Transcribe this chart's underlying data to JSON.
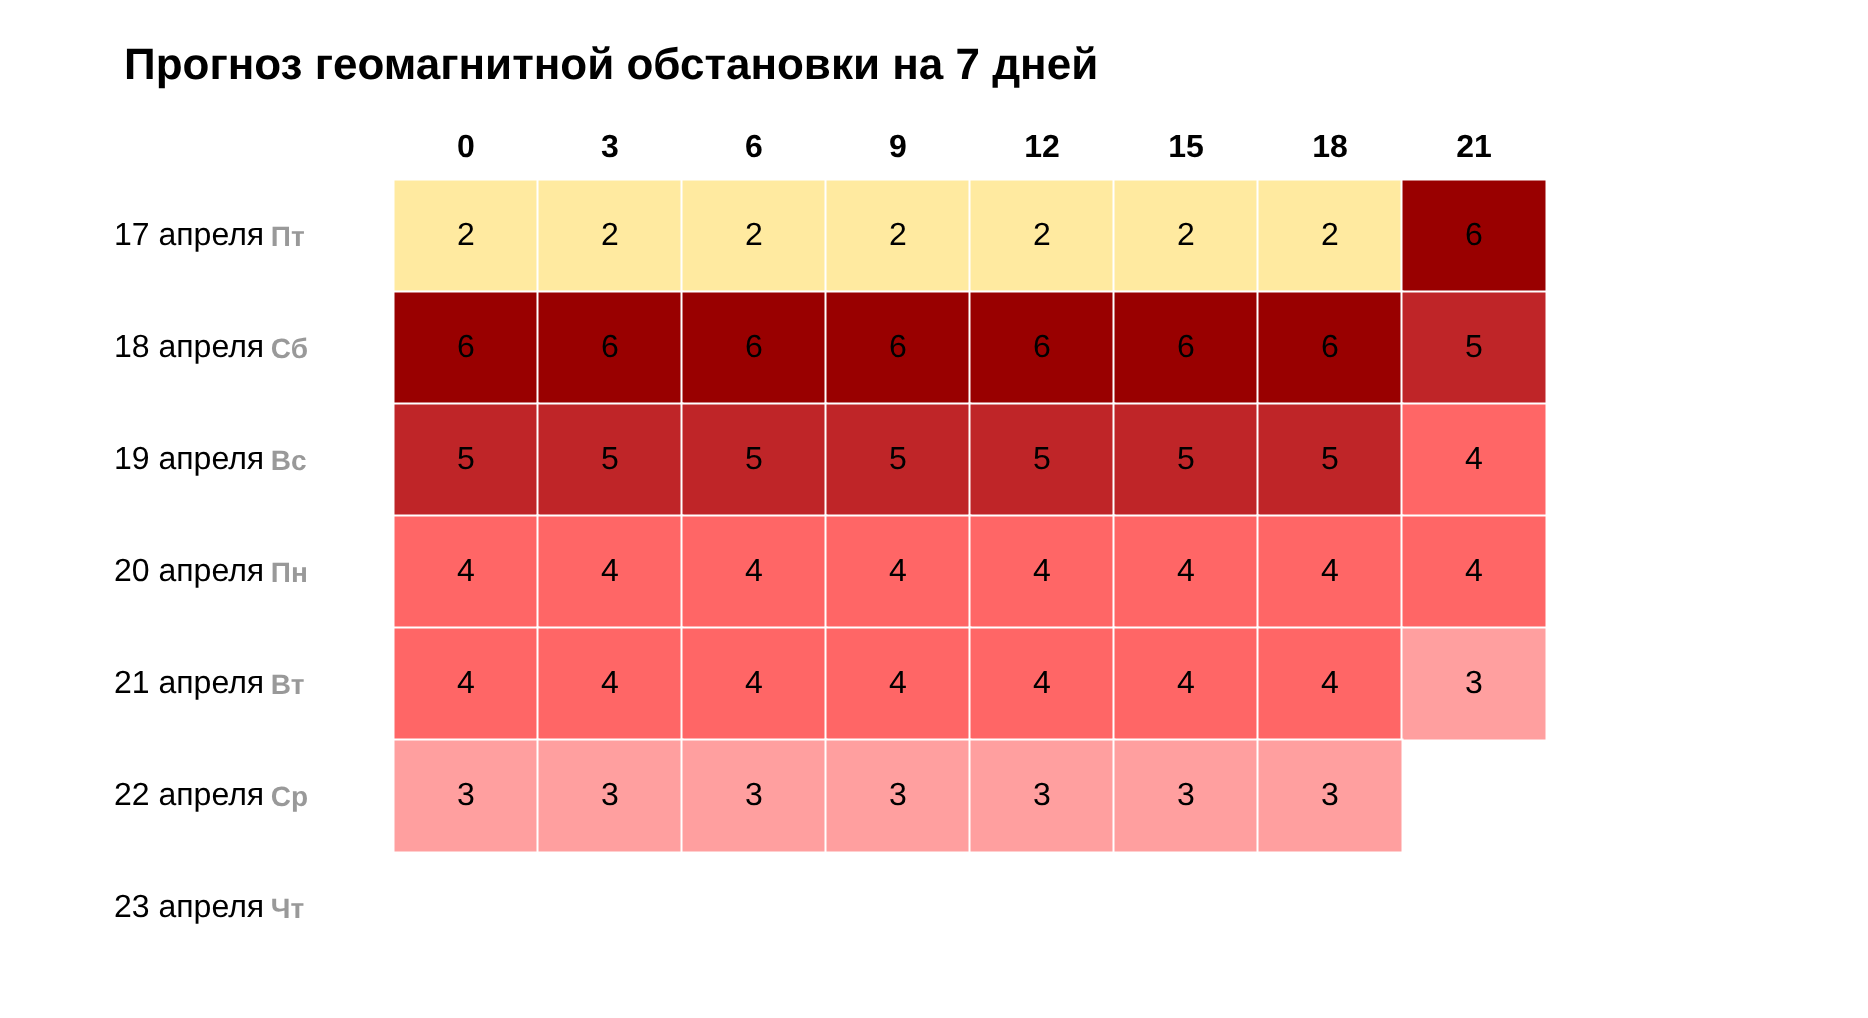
{
  "chart_data": {
    "type": "heatmap",
    "title": "Прогноз геомагнитной обстановки на 7 дней",
    "categories": [
      "0",
      "3",
      "6",
      "9",
      "12",
      "15",
      "18",
      "21"
    ],
    "y_categories": [
      "17 апреля Пт",
      "18 апреля Сб",
      "19 апреля Вс",
      "20 апреля Пн",
      "21 апреля Вт",
      "22 апреля Ср",
      "23 апреля Чт"
    ],
    "cells": [
      [
        2,
        2,
        2,
        2,
        2,
        2,
        2,
        6
      ],
      [
        6,
        6,
        6,
        6,
        6,
        6,
        6,
        5
      ],
      [
        5,
        5,
        5,
        5,
        5,
        5,
        5,
        4
      ],
      [
        4,
        4,
        4,
        4,
        4,
        4,
        4,
        4
      ],
      [
        4,
        4,
        4,
        4,
        4,
        4,
        4,
        3
      ],
      [
        3,
        3,
        3,
        3,
        3,
        3,
        3,
        null
      ],
      [
        null,
        null,
        null,
        null,
        null,
        null,
        null,
        null
      ]
    ],
    "colors": [
      "#ffeaa0",
      "#ff9f9f",
      "#ff6666",
      "#bf2528",
      "#990000"
    ],
    "data_labels": true
  }
}
